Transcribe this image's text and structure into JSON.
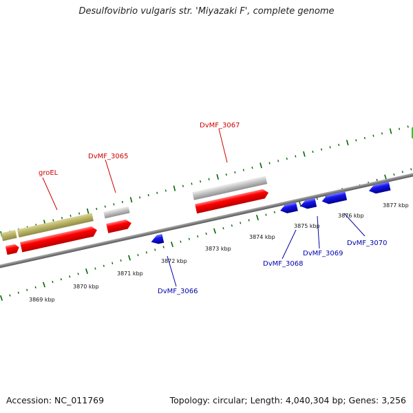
{
  "title": "Desulfovibrio vulgaris str. 'Miyazaki F', complete genome",
  "footer": {
    "accession": "Accession: NC_011769",
    "summary": "Topology: circular; Length: 4,040,304 bp; Genes: 3,256"
  },
  "scale": {
    "tick_labels": [
      "3869 kbp",
      "3870 kbp",
      "3871 kbp",
      "3872 kbp",
      "3873 kbp",
      "3874 kbp",
      "3875 kbp",
      "3876 kbp",
      "3877 kbp"
    ]
  },
  "genes": {
    "forward_labels": [
      "groEL",
      "DvMF_3065",
      "DvMF_3067"
    ],
    "reverse_labels": [
      "DvMF_3066",
      "DvMF_3068",
      "DvMF_3069",
      "DvMF_3070"
    ]
  },
  "colors": {
    "forward_label": "#cc0000",
    "reverse_label": "#0000aa",
    "cds": "#ff0000",
    "reverse_cds": "#0000ee",
    "rna": "#bdb76b",
    "gene": "#c0c0c0",
    "backbone": "#808080",
    "tick": "#006400"
  }
}
